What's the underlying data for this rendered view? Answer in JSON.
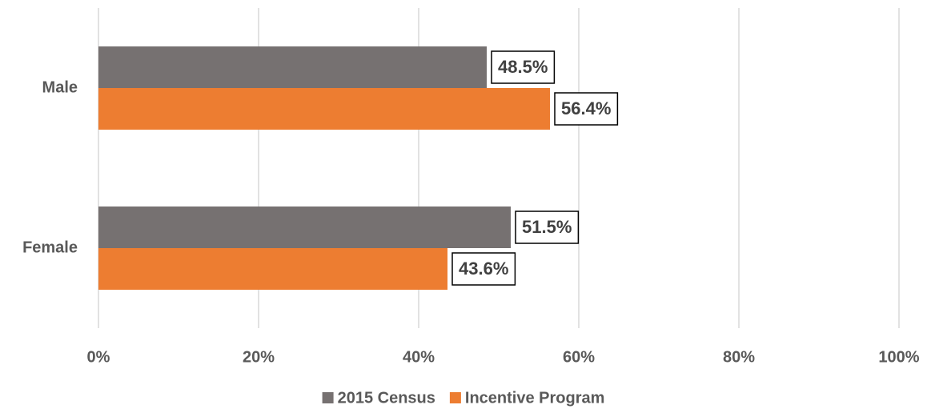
{
  "chart_data": {
    "type": "bar",
    "orientation": "horizontal",
    "categories": [
      "Male",
      "Female"
    ],
    "series": [
      {
        "name": "2015 Census",
        "color": "#767171",
        "values": [
          48.5,
          51.5
        ],
        "value_labels": [
          "48.5%",
          "51.5%"
        ]
      },
      {
        "name": "Incentive Program",
        "color": "#ED7D31",
        "values": [
          56.4,
          43.6
        ],
        "value_labels": [
          "56.4%",
          "43.6%"
        ]
      }
    ],
    "xlim": [
      0,
      100
    ],
    "xticks": [
      {
        "value": 0,
        "label": "0%"
      },
      {
        "value": 20,
        "label": "20%"
      },
      {
        "value": 40,
        "label": "40%"
      },
      {
        "value": 60,
        "label": "60%"
      },
      {
        "value": 80,
        "label": "80%"
      },
      {
        "value": 100,
        "label": "100%"
      }
    ],
    "grid": true,
    "legend": "bottom"
  }
}
